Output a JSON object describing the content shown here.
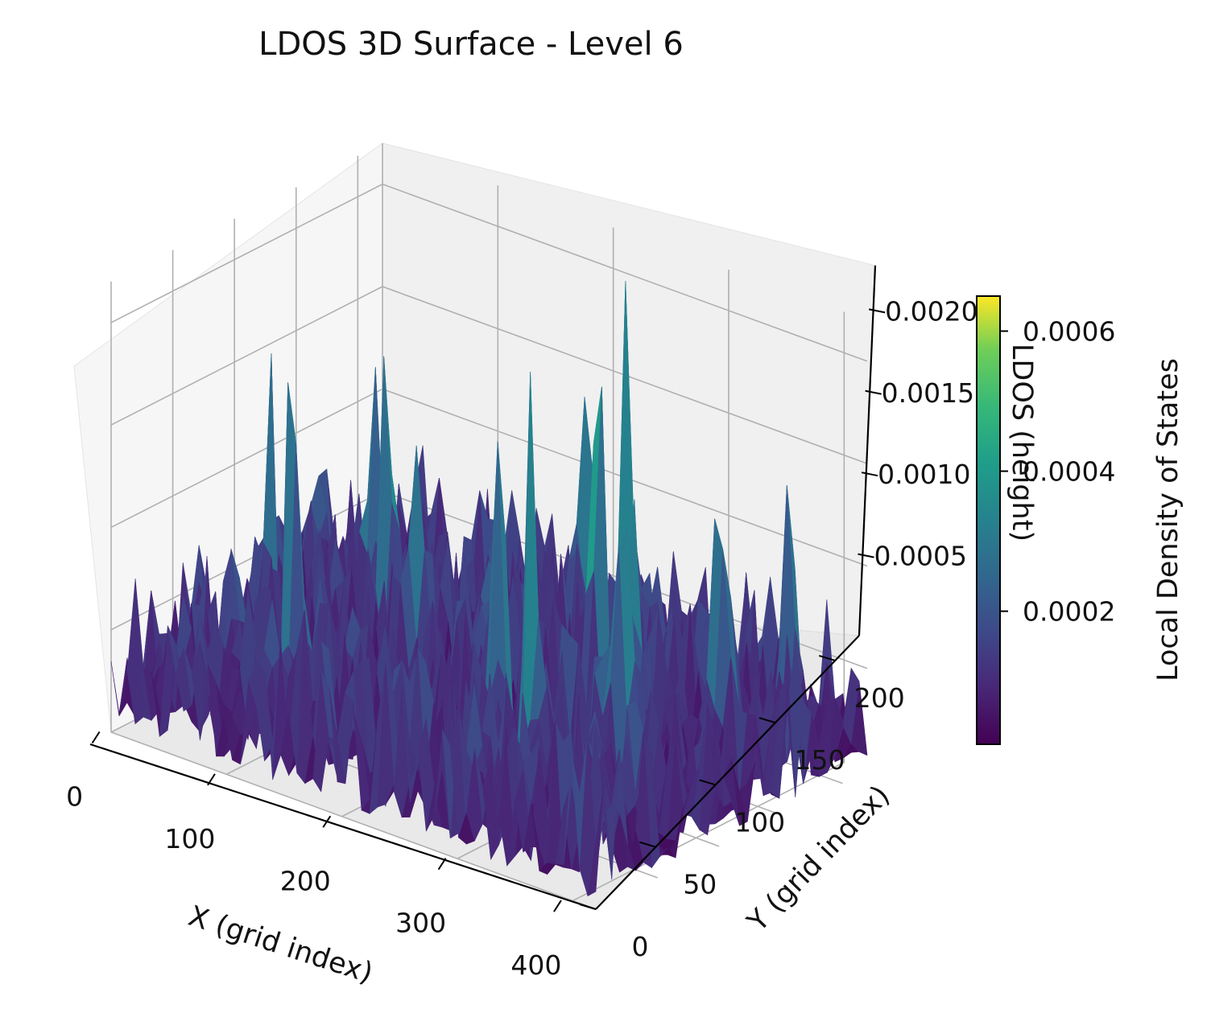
{
  "chart_data": {
    "type": "surface3d",
    "title": "LDOS 3D Surface - Level 6",
    "xlabel": "X (grid index)",
    "ylabel": "Y (grid index)",
    "zlabel": "LDOS (height)",
    "x_ticks": [
      "0",
      "100",
      "200",
      "300",
      "400"
    ],
    "y_ticks": [
      "0",
      "50",
      "100",
      "150",
      "200"
    ],
    "z_ticks": [
      "0.0005",
      "0.0010",
      "0.0015",
      "0.0020"
    ],
    "xlim": [
      0,
      420
    ],
    "ylim": [
      0,
      220
    ],
    "zlim": [
      0,
      0.0022
    ],
    "colormap": "viridis",
    "colorbar": {
      "label": "Local Density of States",
      "ticks": [
        "0.0002",
        "0.0004",
        "0.0006"
      ],
      "range": [
        1e-05,
        0.00065
      ]
    },
    "peaks": [
      {
        "x": 95,
        "y": 60,
        "z": 0.0019
      },
      {
        "x": 100,
        "y": 130,
        "z": 0.0018
      },
      {
        "x": 70,
        "y": 150,
        "z": 0.0015
      },
      {
        "x": 190,
        "y": 205,
        "z": 0.0016
      },
      {
        "x": 250,
        "y": 80,
        "z": 0.002
      },
      {
        "x": 260,
        "y": 175,
        "z": 0.0021
      },
      {
        "x": 270,
        "y": 140,
        "z": 0.0019
      },
      {
        "x": 300,
        "y": 60,
        "z": 0.0018
      },
      {
        "x": 320,
        "y": 120,
        "z": 0.0017
      },
      {
        "x": 340,
        "y": 95,
        "z": 0.0019
      },
      {
        "x": 360,
        "y": 155,
        "z": 0.0016
      },
      {
        "x": 385,
        "y": 190,
        "z": 0.0015
      },
      {
        "x": 150,
        "y": 110,
        "z": 0.0012
      },
      {
        "x": 40,
        "y": 90,
        "z": 0.0011
      }
    ]
  }
}
